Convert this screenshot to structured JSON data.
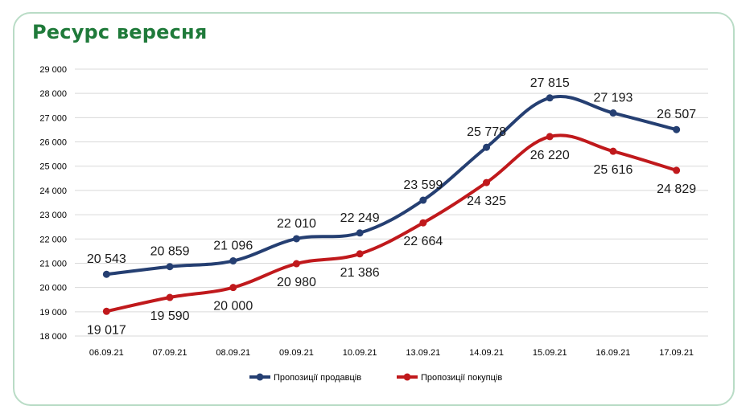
{
  "title": "Ресурс вересня",
  "chart_data": {
    "type": "line",
    "title": "Ресурс вересня",
    "xlabel": "",
    "ylabel": "",
    "categories": [
      "06.09.21",
      "07.09.21",
      "08.09.21",
      "09.09.21",
      "10.09.21",
      "13.09.21",
      "14.09.21",
      "15.09.21",
      "16.09.21",
      "17.09.21"
    ],
    "ylim": [
      18000,
      29000
    ],
    "yticks": [
      18000,
      19000,
      20000,
      21000,
      22000,
      23000,
      24000,
      25000,
      26000,
      27000,
      28000,
      29000
    ],
    "ytick_labels": [
      "18 000",
      "19 000",
      "20 000",
      "21 000",
      "22 000",
      "23 000",
      "24 000",
      "25 000",
      "26 000",
      "27 000",
      "28 000",
      "29 000"
    ],
    "grid": true,
    "legend_position": "bottom",
    "series": [
      {
        "name": "Пропозиції продавців",
        "color": "#253f72",
        "values": [
          20543,
          20859,
          21096,
          22010,
          22249,
          23599,
          25778,
          27815,
          27193,
          26507
        ],
        "labels": [
          "20 543",
          "20 859",
          "21 096",
          "22 010",
          "22 249",
          "23 599",
          "25 778",
          "27 815",
          "27 193",
          "26 507"
        ]
      },
      {
        "name": "Пропозиції покупців",
        "color": "#c0191c",
        "values": [
          19017,
          19590,
          20000,
          20980,
          21386,
          22664,
          24325,
          26220,
          25616,
          24829
        ],
        "labels": [
          "19 017",
          "19 590",
          "20 000",
          "20 980",
          "21 386",
          "22 664",
          "24 325",
          "26 220",
          "25 616",
          "24 829"
        ]
      }
    ]
  }
}
